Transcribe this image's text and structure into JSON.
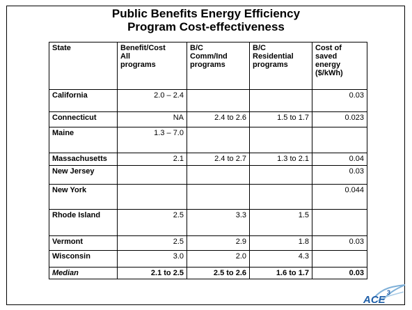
{
  "title": "Public Benefits Energy Efficiency\nProgram Cost-effectiveness",
  "table": {
    "header": [
      "State",
      "Benefit/Cost\nAll\nprograms",
      "B/C\nComm/Ind\nprograms",
      "B/C\nResidential\nprograms",
      "Cost of\nsaved\nenergy\n($/kWh)"
    ],
    "rows": [
      [
        "California",
        "2.0 – 2.4",
        "",
        "",
        "0.03"
      ],
      [
        "Connecticut",
        "NA",
        "2.4 to 2.6",
        "1.5 to 1.7",
        "0.023"
      ],
      [
        "Maine",
        "1.3 – 7.0",
        "",
        "",
        ""
      ],
      [
        "Massachusetts",
        "2.1",
        "2.4 to 2.7",
        "1.3 to 2.1",
        "0.04"
      ],
      [
        "New Jersey",
        "",
        "",
        "",
        "0.03"
      ],
      [
        "New York",
        "",
        "",
        "",
        "0.044"
      ],
      [
        "Rhode Island",
        "2.5",
        "3.3",
        "1.5",
        ""
      ],
      [
        "Vermont",
        "2.5",
        "2.9",
        "1.8",
        "0.03"
      ],
      [
        "Wisconsin",
        "3.0",
        "2.0",
        "4.3",
        ""
      ],
      [
        "Median",
        "2.1 to 2.5",
        "2.5 to 2.6",
        "1.6 to 1.7",
        "0.03"
      ]
    ]
  },
  "logo": {
    "text": "ACE",
    "superscript": "3"
  }
}
